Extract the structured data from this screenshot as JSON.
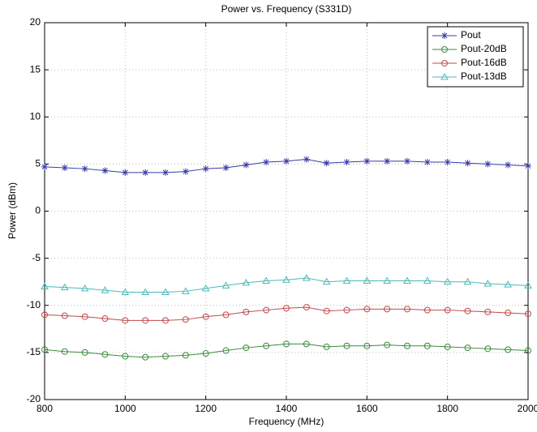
{
  "chart_data": {
    "type": "line",
    "title": "Power vs. Frequency (S331D)",
    "x_label": "Frequency (MHz)",
    "y_label": "Power (dBm)",
    "x": [
      800,
      850,
      900,
      950,
      1000,
      1050,
      1100,
      1150,
      1200,
      1250,
      1300,
      1350,
      1400,
      1450,
      1500,
      1550,
      1600,
      1650,
      1700,
      1750,
      1800,
      1850,
      1900,
      1950,
      2000
    ],
    "series": [
      {
        "name": "Pout",
        "color": "#3a3aa8",
        "marker": "star",
        "values": [
          4.7,
          4.6,
          4.5,
          4.3,
          4.1,
          4.1,
          4.1,
          4.2,
          4.5,
          4.6,
          4.9,
          5.2,
          5.3,
          5.5,
          5.1,
          5.2,
          5.3,
          5.3,
          5.3,
          5.2,
          5.2,
          5.1,
          5.0,
          4.9,
          4.8
        ]
      },
      {
        "name": "Pout-20dB",
        "color": "#3c8a3c",
        "marker": "circle",
        "values": [
          -14.7,
          -14.9,
          -15.0,
          -15.2,
          -15.4,
          -15.5,
          -15.4,
          -15.3,
          -15.1,
          -14.8,
          -14.5,
          -14.3,
          -14.1,
          -14.1,
          -14.4,
          -14.3,
          -14.3,
          -14.2,
          -14.3,
          -14.3,
          -14.4,
          -14.5,
          -14.6,
          -14.7,
          -14.8
        ]
      },
      {
        "name": "Pout-16dB",
        "color": "#c04a4a",
        "marker": "circle",
        "values": [
          -11.0,
          -11.1,
          -11.2,
          -11.4,
          -11.6,
          -11.6,
          -11.6,
          -11.5,
          -11.2,
          -11.0,
          -10.7,
          -10.5,
          -10.3,
          -10.2,
          -10.6,
          -10.5,
          -10.4,
          -10.4,
          -10.4,
          -10.5,
          -10.5,
          -10.6,
          -10.7,
          -10.8,
          -10.9
        ]
      },
      {
        "name": "Pout-13dB",
        "color": "#4cb8b8",
        "marker": "triangle",
        "values": [
          -8.0,
          -8.1,
          -8.2,
          -8.4,
          -8.6,
          -8.6,
          -8.6,
          -8.5,
          -8.2,
          -7.9,
          -7.6,
          -7.4,
          -7.3,
          -7.1,
          -7.5,
          -7.4,
          -7.4,
          -7.4,
          -7.4,
          -7.4,
          -7.5,
          -7.5,
          -7.7,
          -7.8,
          -7.9
        ]
      }
    ],
    "xlim": [
      800,
      2000
    ],
    "xticks": [
      800,
      1000,
      1200,
      1400,
      1600,
      1800,
      2000
    ],
    "ylim": [
      -20,
      20
    ],
    "yticks": [
      -20,
      -15,
      -10,
      -5,
      0,
      5,
      10,
      15,
      20
    ],
    "grid": true,
    "legend": "upper-right"
  }
}
